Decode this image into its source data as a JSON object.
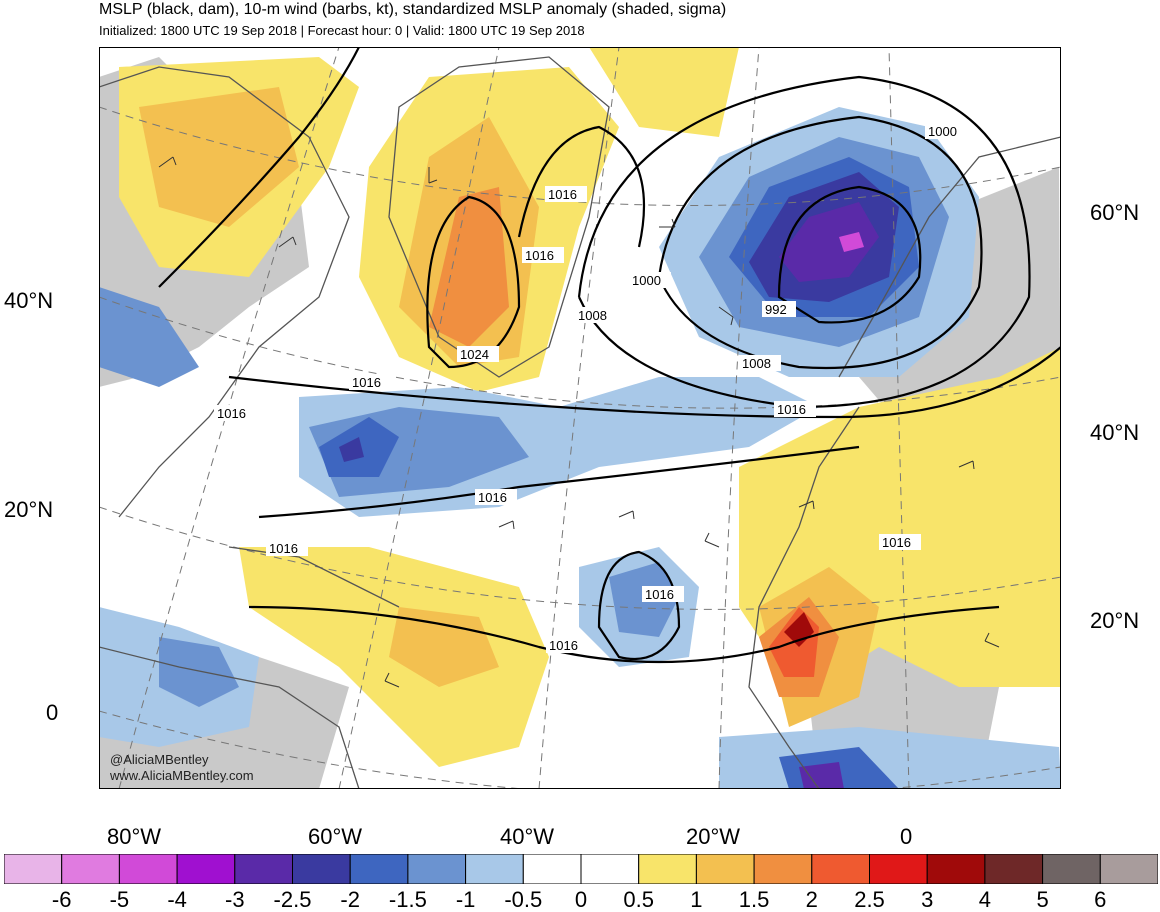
{
  "header": {
    "title": "MSLP (black, dam), 10-m wind (barbs, kt), standardized MSLP anomaly (shaded, sigma)",
    "subtitle": "Initialized: 1800 UTC 19 Sep 2018 | Forecast hour: 0 | Valid: 1800 UTC 19 Sep 2018"
  },
  "credits": {
    "handle": "@AliciaMBentley",
    "website": "www.AliciaMBentley.com"
  },
  "axes": {
    "left_lat": [
      "40°N",
      "20°N",
      "0"
    ],
    "right_lat": [
      "60°N",
      "40°N",
      "20°N"
    ],
    "bottom_lon": [
      "80°W",
      "60°W",
      "40°W",
      "20°W",
      "0"
    ]
  },
  "isobar_labels": [
    "1016",
    "1016",
    "1000",
    "1000",
    "992",
    "1008",
    "1008",
    "1024",
    "1016",
    "1016",
    "1016",
    "1016",
    "1016",
    "1016",
    "1016",
    "1016"
  ],
  "colorbar": {
    "labels": [
      "-6",
      "-5",
      "-4",
      "-3",
      "-2.5",
      "-2",
      "-1.5",
      "-1",
      "-0.5",
      "0",
      "0.5",
      "1",
      "1.5",
      "2",
      "2.5",
      "3",
      "4",
      "5",
      "6"
    ],
    "colors": [
      "#e8b4e8",
      "#e07be0",
      "#d14ad8",
      "#a010d0",
      "#5a2aa8",
      "#3a3aa0",
      "#3e66c0",
      "#6b93d0",
      "#a8c8e8",
      "#ffffff",
      "#ffffff",
      "#f8e46a",
      "#f3c050",
      "#f08f40",
      "#ef5a30",
      "#e01818",
      "#a00a0a",
      "#6e2828",
      "#6f6464",
      "#a89c9c"
    ]
  },
  "colors": {
    "land_gray": "#c4c4c4",
    "coast": "#555555"
  }
}
